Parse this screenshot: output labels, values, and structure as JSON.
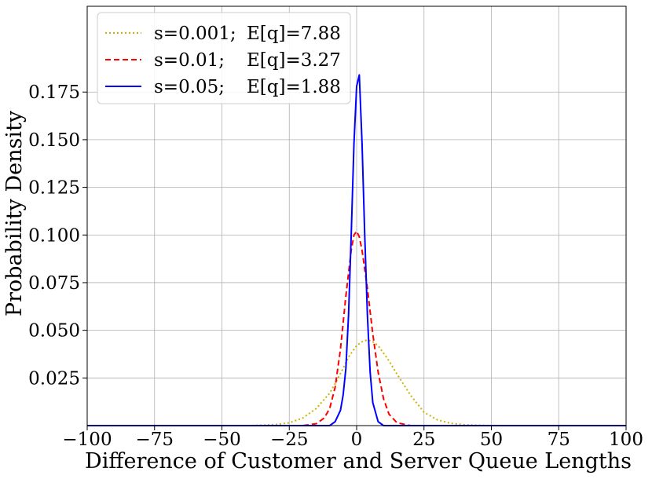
{
  "chart_data": {
    "type": "line",
    "xlabel": "Difference of Customer and Server Queue Lengths",
    "ylabel": "Probability Density",
    "xlim": [
      -100,
      100
    ],
    "ylim": [
      0,
      0.22
    ],
    "xticks": [
      -100,
      -75,
      -50,
      -25,
      0,
      25,
      50,
      75,
      100
    ],
    "xtick_labels": [
      "−100",
      "−75",
      "−50",
      "−25",
      "0",
      "25",
      "50",
      "75",
      "100"
    ],
    "yticks": [
      0.025,
      0.05,
      0.075,
      0.1,
      0.125,
      0.15,
      0.175
    ],
    "ytick_labels": [
      "0.025",
      "0.050",
      "0.075",
      "0.100",
      "0.125",
      "0.150",
      "0.175"
    ],
    "grid": true,
    "legend_position": "top-left",
    "series": [
      {
        "name": "s=0.001; E[q]=7.88",
        "legend_left": "s=0.001;",
        "legend_right": "E[q]=7.88",
        "color": "#c8b400",
        "style": "dotted",
        "x": [
          -100,
          -40,
          -30,
          -25,
          -20,
          -15,
          -10,
          -8,
          -5,
          -3,
          0,
          2,
          4,
          6,
          8,
          10,
          12,
          15,
          20,
          25,
          30,
          35,
          40,
          50,
          100
        ],
        "y": [
          0,
          0,
          0.0005,
          0.0015,
          0.004,
          0.009,
          0.017,
          0.022,
          0.03,
          0.036,
          0.042,
          0.044,
          0.045,
          0.044,
          0.042,
          0.038,
          0.034,
          0.027,
          0.016,
          0.007,
          0.003,
          0.0012,
          0.0004,
          0,
          0
        ]
      },
      {
        "name": "s=0.01;   E[q]=3.27",
        "legend_left": "s=0.01;",
        "legend_right": "E[q]=3.27",
        "color": "#ff0000",
        "style": "dashed",
        "x": [
          -100,
          -20,
          -15,
          -12,
          -10,
          -8,
          -6,
          -4,
          -2,
          -1,
          0,
          1,
          2,
          4,
          6,
          8,
          10,
          12,
          15,
          20,
          100
        ],
        "y": [
          0,
          0,
          0.001,
          0.004,
          0.009,
          0.02,
          0.04,
          0.068,
          0.092,
          0.1,
          0.102,
          0.099,
          0.092,
          0.072,
          0.048,
          0.028,
          0.014,
          0.006,
          0.0015,
          0,
          0
        ]
      },
      {
        "name": "s=0.05;   E[q]=1.88",
        "legend_left": "s=0.05;",
        "legend_right": "E[q]=1.88",
        "color": "#0000ff",
        "style": "solid",
        "x": [
          -100,
          -10,
          -8,
          -6,
          -5,
          -4,
          -3,
          -2,
          -1,
          0,
          1,
          2,
          3,
          4,
          5,
          6,
          8,
          10,
          100
        ],
        "y": [
          0,
          0,
          0.002,
          0.008,
          0.016,
          0.03,
          0.058,
          0.1,
          0.148,
          0.178,
          0.184,
          0.148,
          0.1,
          0.058,
          0.028,
          0.012,
          0.002,
          0,
          0
        ]
      }
    ]
  }
}
